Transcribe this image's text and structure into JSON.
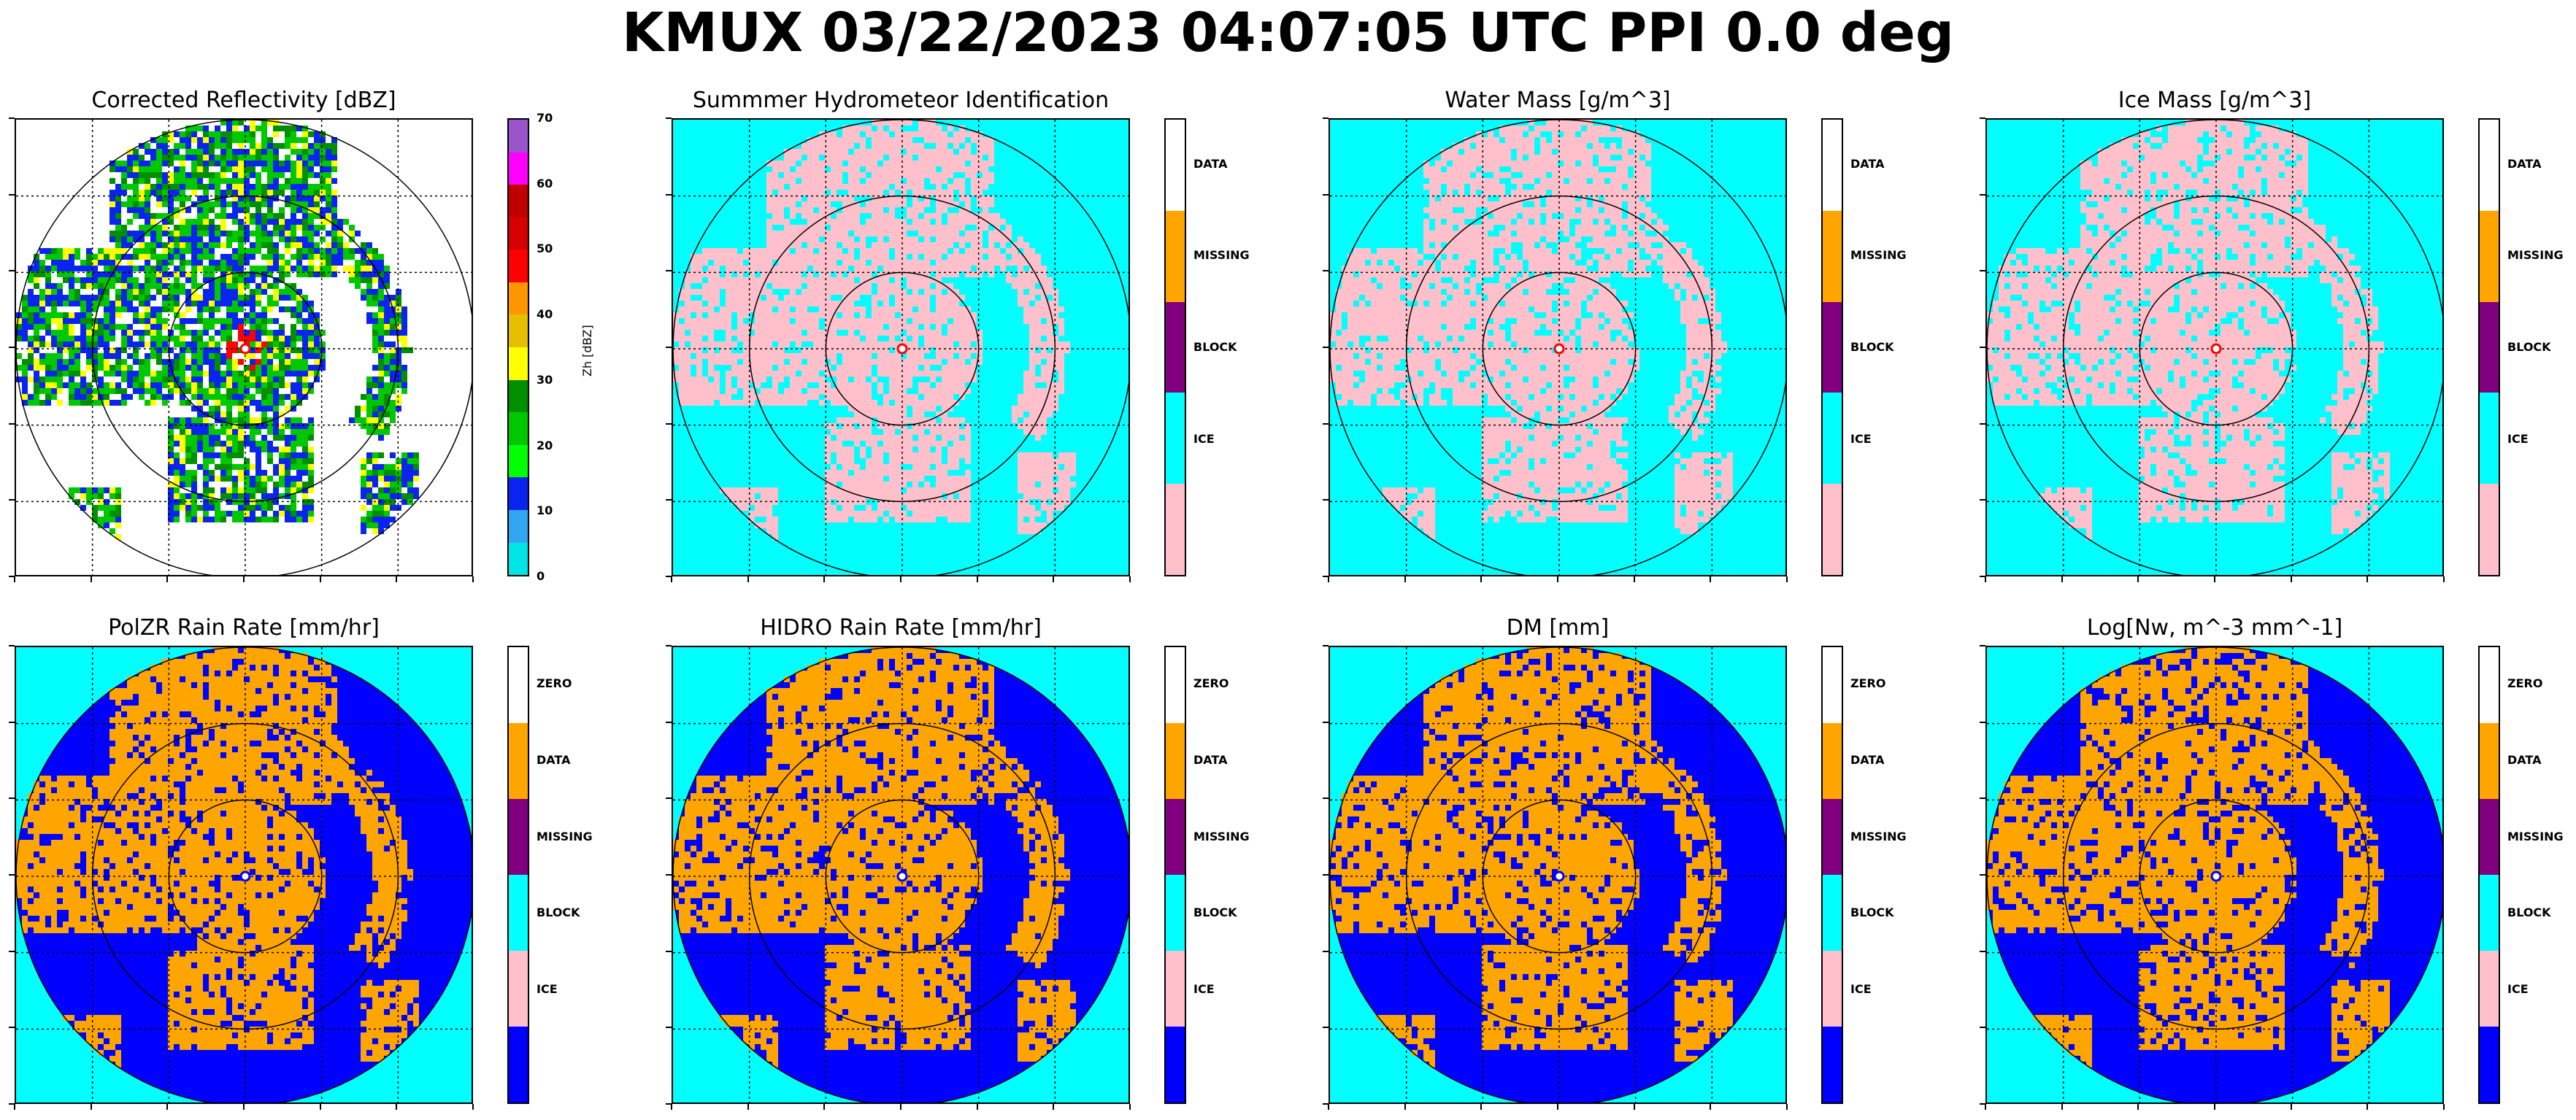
{
  "figure_title": "KMUX 03/22/2023 04:07:05 UTC PPI 0.0 deg",
  "chart_data": [
    {
      "type": "heatmap",
      "title": "Corrected Reflectivity [dBZ]",
      "colorbar": {
        "kind": "continuous",
        "label": "Zh [dBZ]",
        "ticks": [
          "0",
          "10",
          "20",
          "30",
          "40",
          "50",
          "60",
          "70"
        ],
        "range": [
          0,
          70
        ],
        "colors": [
          "#00e5e5",
          "#33a6f2",
          "#0a24f0",
          "#00ff00",
          "#00c800",
          "#008f00",
          "#ffff00",
          "#e6bf00",
          "#ff9500",
          "#ff0000",
          "#d60000",
          "#c00000",
          "#ff00ff",
          "#9955c9"
        ]
      },
      "polar_grid": {
        "rings": 3,
        "gridlines": "dotted"
      }
    },
    {
      "type": "heatmap",
      "title": "Summmer Hydrometeor Identification",
      "colorbar": {
        "kind": "categorical",
        "categories": [
          "DATA",
          "MISSING",
          "BLOCK",
          "ICE",
          ""
        ],
        "colors": [
          "#ffc0cb",
          "#00ffff",
          "#800080",
          "#ffa500",
          "#ffffff"
        ]
      },
      "dominant": {
        "background": "#00ffff",
        "echo": "#ffc0cb"
      }
    },
    {
      "type": "heatmap",
      "title": "Water Mass [g/m^3]",
      "colorbar": {
        "kind": "categorical",
        "categories": [
          "DATA",
          "MISSING",
          "BLOCK",
          "ICE",
          ""
        ],
        "colors": [
          "#ffc0cb",
          "#00ffff",
          "#800080",
          "#ffa500",
          "#ffffff"
        ]
      },
      "dominant": {
        "background": "#00ffff",
        "echo": "#ffc0cb"
      }
    },
    {
      "type": "heatmap",
      "title": "Ice Mass [g/m^3]",
      "colorbar": {
        "kind": "categorical",
        "categories": [
          "DATA",
          "MISSING",
          "BLOCK",
          "ICE",
          ""
        ],
        "colors": [
          "#ffc0cb",
          "#00ffff",
          "#800080",
          "#ffa500",
          "#ffffff"
        ]
      },
      "dominant": {
        "background": "#00ffff",
        "echo": "#ffc0cb"
      }
    },
    {
      "type": "heatmap",
      "title": "PolZR Rain Rate [mm/hr]",
      "colorbar": {
        "kind": "categorical",
        "categories": [
          "ZERO",
          "DATA",
          "MISSING",
          "BLOCK",
          "ICE",
          ""
        ],
        "colors": [
          "#0000ff",
          "#ffc0cb",
          "#00ffff",
          "#800080",
          "#ffa500",
          "#ffffff"
        ]
      },
      "dominant": {
        "background": "#00ffff",
        "disc": "#0000ff",
        "echo": "#ffa500"
      }
    },
    {
      "type": "heatmap",
      "title": "HIDRO Rain Rate [mm/hr]",
      "colorbar": {
        "kind": "categorical",
        "categories": [
          "ZERO",
          "DATA",
          "MISSING",
          "BLOCK",
          "ICE",
          ""
        ],
        "colors": [
          "#0000ff",
          "#ffc0cb",
          "#00ffff",
          "#800080",
          "#ffa500",
          "#ffffff"
        ]
      },
      "dominant": {
        "background": "#00ffff",
        "disc": "#0000ff",
        "echo": "#ffa500"
      }
    },
    {
      "type": "heatmap",
      "title": "DM [mm]",
      "colorbar": {
        "kind": "categorical",
        "categories": [
          "ZERO",
          "DATA",
          "MISSING",
          "BLOCK",
          "ICE",
          ""
        ],
        "colors": [
          "#0000ff",
          "#ffc0cb",
          "#00ffff",
          "#800080",
          "#ffa500",
          "#ffffff"
        ]
      },
      "dominant": {
        "background": "#00ffff",
        "disc": "#0000ff",
        "echo": "#ffa500"
      }
    },
    {
      "type": "heatmap",
      "title": "Log[Nw, m^-3 mm^-1]",
      "colorbar": {
        "kind": "categorical",
        "categories": [
          "ZERO",
          "DATA",
          "MISSING",
          "BLOCK",
          "ICE",
          ""
        ],
        "colors": [
          "#0000ff",
          "#ffc0cb",
          "#00ffff",
          "#800080",
          "#ffa500",
          "#ffffff"
        ]
      },
      "dominant": {
        "background": "#00ffff",
        "disc": "#0000ff",
        "echo": "#ffa500"
      }
    }
  ]
}
